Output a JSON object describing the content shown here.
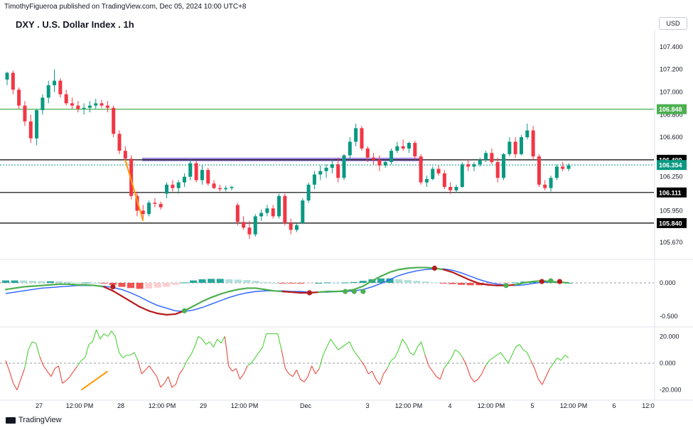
{
  "header": {
    "publisher": "TimothyFigueroa published on TradingView.com, Dec 05, 2024 10:00 UTC+8",
    "title": "DXY . U.S. Dollar Index . 1h",
    "currency": "USD"
  },
  "footer": {
    "brand": "TradingView"
  },
  "chart_data": [
    {
      "type": "candlestick",
      "title": "DXY . U.S. Dollar Index . 1h",
      "ylim": [
        105.55,
        107.55
      ],
      "y_ticks": [
        "107.400",
        "107.200",
        "107.000",
        "106.800",
        "106.600",
        "106.250",
        "105.950",
        "105.670"
      ],
      "x_ticks": [
        "27",
        "12:00 PM",
        "28",
        "12:00 PM",
        "29",
        "12:00 PM",
        "Dec",
        "3",
        "12:00 PM",
        "4",
        "12:00 PM",
        "5",
        "12:00 PM",
        "6",
        "12:0"
      ],
      "horizontal_levels": [
        {
          "value": 106.848,
          "label": "106.848",
          "color": "#4caf50"
        },
        {
          "value": 106.4,
          "label": "106.400",
          "color": "#000000"
        },
        {
          "value": 106.354,
          "label": "106.354",
          "color": "#089981",
          "style": "dotted"
        },
        {
          "value": 106.111,
          "label": "106.111",
          "color": "#000000"
        },
        {
          "value": 105.84,
          "label": "105.840",
          "color": "#000000"
        }
      ],
      "zone_band": {
        "y": 106.4,
        "color": "#9c7fe0"
      },
      "colors": {
        "up": "#089981",
        "down": "#f23645",
        "trendline": "#ff9800"
      },
      "candles": [
        [
          107.11,
          107.18,
          107.06,
          107.17
        ],
        [
          107.17,
          107.19,
          106.98,
          107.02
        ],
        [
          107.02,
          107.04,
          106.85,
          106.88
        ],
        [
          106.88,
          106.92,
          106.7,
          106.74
        ],
        [
          106.74,
          106.8,
          106.55,
          106.59
        ],
        [
          106.59,
          106.85,
          106.53,
          106.84
        ],
        [
          106.84,
          106.98,
          106.8,
          106.95
        ],
        [
          106.95,
          107.1,
          106.9,
          107.06
        ],
        [
          107.06,
          107.2,
          107.0,
          107.1
        ],
        [
          107.1,
          107.12,
          106.95,
          106.98
        ],
        [
          106.98,
          107.02,
          106.88,
          106.9
        ],
        [
          106.9,
          106.95,
          106.85,
          106.88
        ],
        [
          106.88,
          106.92,
          106.82,
          106.85
        ],
        [
          106.85,
          106.9,
          106.8,
          106.86
        ],
        [
          106.86,
          106.92,
          106.82,
          106.88
        ],
        [
          106.88,
          106.94,
          106.85,
          106.9
        ],
        [
          106.9,
          106.93,
          106.86,
          106.88
        ],
        [
          106.88,
          106.92,
          106.82,
          106.86
        ],
        [
          106.86,
          106.88,
          106.6,
          106.63
        ],
        [
          106.63,
          106.66,
          106.45,
          106.48
        ],
        [
          106.48,
          106.52,
          106.38,
          106.41
        ],
        [
          106.41,
          106.44,
          106.05,
          106.08
        ],
        [
          106.08,
          106.12,
          105.9,
          105.95
        ],
        [
          105.95,
          106.0,
          105.86,
          105.92
        ],
        [
          105.92,
          106.04,
          105.9,
          106.02
        ],
        [
          106.02,
          106.06,
          105.98,
          106.01
        ],
        [
          106.01,
          106.03,
          105.96,
          105.98
        ],
        [
          106.1,
          106.2,
          106.06,
          106.18
        ],
        [
          106.18,
          106.22,
          106.12,
          106.15
        ],
        [
          106.15,
          106.22,
          106.1,
          106.2
        ],
        [
          106.2,
          106.28,
          106.16,
          106.25
        ],
        [
          106.25,
          106.4,
          106.22,
          106.37
        ],
        [
          106.37,
          106.39,
          106.2,
          106.22
        ],
        [
          106.22,
          106.35,
          106.18,
          106.31
        ],
        [
          106.31,
          106.33,
          106.17,
          106.19
        ],
        [
          106.19,
          106.22,
          106.14,
          106.15
        ],
        [
          106.15,
          106.18,
          106.12,
          106.14
        ],
        [
          106.14,
          106.17,
          106.12,
          106.15
        ],
        [
          106.15,
          106.17,
          106.13,
          106.16
        ],
        [
          106.0,
          106.02,
          105.82,
          105.85
        ],
        [
          105.85,
          105.9,
          105.78,
          105.8
        ],
        [
          105.8,
          105.86,
          105.7,
          105.74
        ],
        [
          105.74,
          105.92,
          105.72,
          105.9
        ],
        [
          105.9,
          105.96,
          105.86,
          105.93
        ],
        [
          105.93,
          106.0,
          105.9,
          105.97
        ],
        [
          105.97,
          106.0,
          105.88,
          105.9
        ],
        [
          105.9,
          106.1,
          105.88,
          106.08
        ],
        [
          106.08,
          106.1,
          105.82,
          105.84
        ],
        [
          105.84,
          105.88,
          105.74,
          105.78
        ],
        [
          105.78,
          105.84,
          105.76,
          105.82
        ],
        [
          105.84,
          106.06,
          105.83,
          106.04
        ],
        [
          106.04,
          106.2,
          106.02,
          106.18
        ],
        [
          106.18,
          106.3,
          106.14,
          106.27
        ],
        [
          106.27,
          106.35,
          106.22,
          106.3
        ],
        [
          106.3,
          106.36,
          106.24,
          106.33
        ],
        [
          106.33,
          106.4,
          106.28,
          106.36
        ],
        [
          106.36,
          106.42,
          106.2,
          106.24
        ],
        [
          106.24,
          106.45,
          106.22,
          106.44
        ],
        [
          106.44,
          106.6,
          106.4,
          106.56
        ],
        [
          106.56,
          106.72,
          106.52,
          106.68
        ],
        [
          106.68,
          106.7,
          106.48,
          106.5
        ],
        [
          106.5,
          106.52,
          106.38,
          106.42
        ],
        [
          106.42,
          106.46,
          106.36,
          106.4
        ],
        [
          106.4,
          106.44,
          106.3,
          106.35
        ],
        [
          106.35,
          106.4,
          106.33,
          106.38
        ],
        [
          106.38,
          106.5,
          106.36,
          106.48
        ],
        [
          106.48,
          106.56,
          106.46,
          106.52
        ],
        [
          106.52,
          106.58,
          106.48,
          106.5
        ],
        [
          106.5,
          106.56,
          106.46,
          106.55
        ],
        [
          106.55,
          106.57,
          106.4,
          106.43
        ],
        [
          106.43,
          106.45,
          106.18,
          106.2
        ],
        [
          106.2,
          106.26,
          106.16,
          106.23
        ],
        [
          106.23,
          106.34,
          106.22,
          106.32
        ],
        [
          106.32,
          106.35,
          106.26,
          106.28
        ],
        [
          106.28,
          106.31,
          106.14,
          106.16
        ],
        [
          106.16,
          106.2,
          106.1,
          106.13
        ],
        [
          106.13,
          106.18,
          106.11,
          106.16
        ],
        [
          106.16,
          106.38,
          106.15,
          106.36
        ],
        [
          106.36,
          106.4,
          106.3,
          106.34
        ],
        [
          106.34,
          106.38,
          106.3,
          106.36
        ],
        [
          106.36,
          106.42,
          106.34,
          106.4
        ],
        [
          106.4,
          106.48,
          106.38,
          106.46
        ],
        [
          106.46,
          106.5,
          106.36,
          106.38
        ],
        [
          106.38,
          106.42,
          106.2,
          106.24
        ],
        [
          106.24,
          106.46,
          106.22,
          106.45
        ],
        [
          106.45,
          106.6,
          106.43,
          106.56
        ],
        [
          106.56,
          106.6,
          106.42,
          106.45
        ],
        [
          106.45,
          106.62,
          106.44,
          106.6
        ],
        [
          106.6,
          106.72,
          106.58,
          106.66
        ],
        [
          106.66,
          106.7,
          106.4,
          106.43
        ],
        [
          106.43,
          106.45,
          106.16,
          106.18
        ],
        [
          106.18,
          106.22,
          106.13,
          106.15
        ],
        [
          106.15,
          106.26,
          106.12,
          106.24
        ],
        [
          106.24,
          106.36,
          106.22,
          106.34
        ],
        [
          106.34,
          106.38,
          106.3,
          106.32
        ],
        [
          106.32,
          106.37,
          106.3,
          106.35
        ]
      ]
    },
    {
      "type": "histogram_lines",
      "ylim": [
        -0.62,
        0.32
      ],
      "y_ticks": [
        "0.000",
        "-0.500"
      ],
      "colors": {
        "fast": "#4caf50",
        "slow": "#2962ff",
        "slow_down": "#b71c1c",
        "hist_pos": "#26a69a",
        "hist_pos_weak": "#b2dfdb",
        "hist_neg": "#ef5350",
        "hist_neg_weak": "#ffcdd2",
        "dot_up": "#4caf50",
        "dot_down": "#b71c1c"
      },
      "fast_line": [
        -0.1,
        -0.08,
        -0.06,
        -0.05,
        -0.04,
        -0.03,
        -0.02,
        -0.02,
        -0.03,
        -0.03,
        -0.04,
        -0.06,
        -0.12,
        -0.2,
        -0.28,
        -0.36,
        -0.42,
        -0.46,
        -0.48,
        -0.47,
        -0.42,
        -0.35,
        -0.28,
        -0.22,
        -0.17,
        -0.13,
        -0.1,
        -0.08,
        -0.08,
        -0.1,
        -0.12,
        -0.13,
        -0.14,
        -0.15,
        -0.15,
        -0.14,
        -0.13,
        -0.13,
        -0.12,
        -0.1,
        -0.05,
        0.03,
        0.1,
        0.16,
        0.2,
        0.22,
        0.23,
        0.23,
        0.22,
        0.2,
        0.16,
        0.1,
        0.04,
        -0.01,
        -0.03,
        -0.04,
        -0.04,
        -0.03,
        0.0,
        0.02,
        0.03,
        0.02,
        0.01,
        0.0
      ],
      "slow_line": [
        -0.16,
        -0.14,
        -0.12,
        -0.1,
        -0.08,
        -0.07,
        -0.06,
        -0.05,
        -0.04,
        -0.04,
        -0.04,
        -0.05,
        -0.07,
        -0.1,
        -0.15,
        -0.21,
        -0.28,
        -0.34,
        -0.38,
        -0.42,
        -0.43,
        -0.41,
        -0.37,
        -0.32,
        -0.27,
        -0.22,
        -0.18,
        -0.15,
        -0.13,
        -0.12,
        -0.12,
        -0.12,
        -0.13,
        -0.13,
        -0.14,
        -0.14,
        -0.14,
        -0.13,
        -0.13,
        -0.12,
        -0.1,
        -0.06,
        -0.01,
        0.05,
        0.11,
        0.15,
        0.18,
        0.2,
        0.21,
        0.21,
        0.19,
        0.15,
        0.1,
        0.05,
        0.01,
        -0.02,
        -0.03,
        -0.04,
        -0.03,
        -0.01,
        0.01,
        0.01,
        0.01,
        0.0
      ],
      "dots": [
        {
          "i": 12,
          "y": -0.06,
          "dir": "down"
        },
        {
          "i": 20,
          "y": -0.42,
          "dir": "up"
        },
        {
          "i": 34,
          "y": -0.15,
          "dir": "down"
        },
        {
          "i": 38,
          "y": -0.13,
          "dir": "up"
        },
        {
          "i": 39,
          "y": -0.13,
          "dir": "up"
        },
        {
          "i": 40,
          "y": -0.13,
          "dir": "up"
        },
        {
          "i": 48,
          "y": 0.22,
          "dir": "down"
        },
        {
          "i": 56,
          "y": -0.04,
          "dir": "up"
        },
        {
          "i": 60,
          "y": 0.02,
          "dir": "down"
        },
        {
          "i": 61,
          "y": 0.03,
          "dir": "up"
        },
        {
          "i": 62,
          "y": 0.02,
          "dir": "down"
        }
      ]
    },
    {
      "type": "line",
      "ylim": [
        -26,
        26
      ],
      "y_ticks": [
        "20.000",
        "0.000",
        "-20.000"
      ],
      "colors": {
        "up": "#4cd137",
        "down": "#e84a3f",
        "trendline": "#ff9800"
      },
      "values": [
        2,
        -6,
        -15,
        -20,
        -12,
        -4,
        10,
        16,
        15,
        5,
        -2,
        -6,
        -10,
        -4,
        -2,
        -15,
        -13,
        -10,
        -6,
        -2,
        2,
        4,
        14,
        16,
        25,
        18,
        22,
        20,
        24,
        20,
        8,
        4,
        6,
        6,
        8,
        2,
        -8,
        -5,
        -2,
        -6,
        -10,
        -18,
        -15,
        -10,
        -18,
        -16,
        -8,
        -4,
        2,
        6,
        12,
        20,
        18,
        14,
        16,
        12,
        18,
        15,
        20,
        -2,
        -6,
        -4,
        -12,
        -8,
        -2,
        0,
        4,
        8,
        12,
        22,
        22,
        22,
        22,
        10,
        -4,
        -8,
        -10,
        -5,
        -12,
        -14,
        -10,
        -2,
        -8,
        -4,
        6,
        12,
        18,
        14,
        10,
        12,
        14,
        16,
        10,
        6,
        2,
        -2,
        -8,
        -6,
        -12,
        -16,
        -8,
        -4,
        2,
        4,
        10,
        18,
        14,
        8,
        6,
        12,
        16,
        6,
        -2,
        -6,
        -10,
        -12,
        -4,
        0,
        4,
        10,
        8,
        4,
        -2,
        -10,
        -14,
        -12,
        -8,
        -2,
        2,
        4,
        6,
        8,
        4,
        0,
        6,
        12,
        14,
        10,
        8,
        2,
        -4,
        -12,
        -16,
        -10,
        -4,
        0,
        4,
        2,
        6,
        4
      ],
      "trendline": [
        [
          20,
          -20
        ],
        [
          27,
          -6
        ]
      ]
    }
  ]
}
